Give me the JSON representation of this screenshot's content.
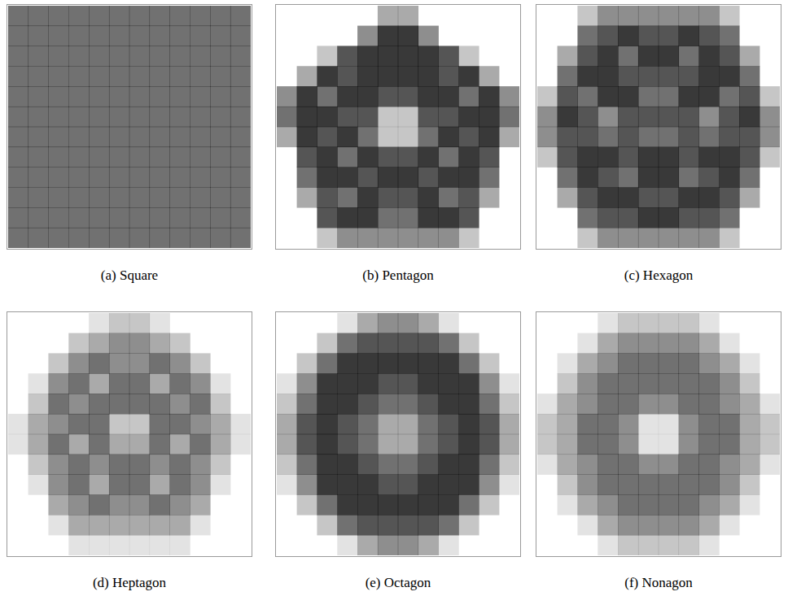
{
  "chart_data": [
    {
      "type": "heatmap",
      "title": "(a) Square",
      "tick_labels": false,
      "color": "#000000",
      "cells": [
        [
          5,
          5,
          5,
          5,
          5,
          5,
          5,
          5,
          5,
          5,
          5,
          5
        ],
        [
          5,
          5,
          5,
          5,
          5,
          5,
          5,
          5,
          5,
          5,
          5,
          5
        ],
        [
          5,
          5,
          5,
          5,
          5,
          5,
          5,
          5,
          5,
          5,
          5,
          5
        ],
        [
          5,
          5,
          5,
          5,
          5,
          5,
          5,
          5,
          5,
          5,
          5,
          5
        ],
        [
          5,
          5,
          5,
          5,
          5,
          5,
          5,
          5,
          5,
          5,
          5,
          5
        ],
        [
          5,
          5,
          5,
          5,
          5,
          5,
          5,
          5,
          5,
          5,
          5,
          5
        ],
        [
          5,
          5,
          5,
          5,
          5,
          5,
          5,
          5,
          5,
          5,
          5,
          5
        ],
        [
          5,
          5,
          5,
          5,
          5,
          5,
          5,
          5,
          5,
          5,
          5,
          5
        ],
        [
          5,
          5,
          5,
          5,
          5,
          5,
          5,
          5,
          5,
          5,
          5,
          5
        ],
        [
          5,
          5,
          5,
          5,
          5,
          5,
          5,
          5,
          5,
          5,
          5,
          5
        ],
        [
          5,
          5,
          5,
          5,
          5,
          5,
          5,
          5,
          5,
          5,
          5,
          5
        ],
        [
          5,
          5,
          5,
          5,
          5,
          5,
          5,
          5,
          5,
          5,
          5,
          5
        ]
      ]
    },
    {
      "type": "heatmap",
      "title": "(b) Pentagon",
      "tick_labels": false,
      "color": "#000000",
      "cells": [
        [
          0,
          0,
          0,
          0,
          0,
          3,
          3,
          0,
          0,
          0,
          0,
          0
        ],
        [
          0,
          0,
          0,
          0,
          4,
          7,
          7,
          4,
          0,
          0,
          0,
          0
        ],
        [
          0,
          0,
          2,
          6,
          7,
          7,
          7,
          7,
          6,
          2,
          0,
          0
        ],
        [
          0,
          3,
          7,
          6,
          7,
          7,
          7,
          7,
          6,
          7,
          3,
          0
        ],
        [
          4,
          7,
          5,
          7,
          7,
          6,
          6,
          7,
          7,
          5,
          7,
          4
        ],
        [
          5,
          7,
          7,
          6,
          6,
          2,
          2,
          6,
          6,
          7,
          7,
          5
        ],
        [
          3,
          7,
          6,
          7,
          5,
          2,
          2,
          5,
          7,
          6,
          7,
          3
        ],
        [
          0,
          6,
          7,
          5,
          7,
          6,
          6,
          7,
          5,
          7,
          6,
          0
        ],
        [
          0,
          5,
          7,
          7,
          6,
          7,
          7,
          6,
          7,
          7,
          5,
          0
        ],
        [
          0,
          3,
          6,
          5,
          7,
          6,
          6,
          7,
          5,
          6,
          3,
          0
        ],
        [
          0,
          0,
          6,
          7,
          7,
          5,
          5,
          7,
          7,
          6,
          0,
          0
        ],
        [
          0,
          0,
          2,
          4,
          4,
          4,
          4,
          4,
          4,
          2,
          0,
          0
        ]
      ]
    },
    {
      "type": "heatmap",
      "title": "(c) Hexagon",
      "tick_labels": false,
      "color": "#000000",
      "cells": [
        [
          0,
          0,
          2,
          4,
          4,
          4,
          4,
          4,
          4,
          2,
          0,
          0
        ],
        [
          0,
          0,
          5,
          6,
          7,
          6,
          6,
          7,
          6,
          5,
          0,
          0
        ],
        [
          0,
          3,
          6,
          7,
          5,
          7,
          7,
          5,
          7,
          6,
          3,
          0
        ],
        [
          0,
          5,
          7,
          7,
          6,
          6,
          6,
          6,
          7,
          7,
          5,
          0
        ],
        [
          2,
          6,
          5,
          7,
          7,
          5,
          5,
          7,
          7,
          5,
          6,
          2
        ],
        [
          4,
          7,
          6,
          4,
          6,
          6,
          6,
          6,
          4,
          6,
          7,
          4
        ],
        [
          4,
          6,
          6,
          5,
          6,
          5,
          5,
          6,
          5,
          6,
          6,
          4
        ],
        [
          2,
          6,
          7,
          7,
          6,
          7,
          7,
          6,
          7,
          7,
          6,
          2
        ],
        [
          0,
          5,
          7,
          6,
          5,
          7,
          7,
          5,
          6,
          7,
          5,
          0
        ],
        [
          0,
          3,
          6,
          7,
          7,
          6,
          6,
          7,
          7,
          6,
          3,
          0
        ],
        [
          0,
          0,
          5,
          6,
          6,
          7,
          7,
          6,
          6,
          5,
          0,
          0
        ],
        [
          0,
          0,
          2,
          4,
          4,
          4,
          4,
          4,
          4,
          2,
          0,
          0
        ]
      ]
    },
    {
      "type": "heatmap",
      "title": "(d) Heptagon",
      "tick_labels": false,
      "color": "#000000",
      "cells": [
        [
          0,
          0,
          0,
          0,
          1,
          2,
          2,
          1,
          0,
          0,
          0,
          0
        ],
        [
          0,
          0,
          0,
          2,
          3,
          4,
          4,
          3,
          2,
          0,
          0,
          0
        ],
        [
          0,
          0,
          2,
          4,
          5,
          4,
          4,
          5,
          4,
          2,
          0,
          0
        ],
        [
          0,
          1,
          4,
          5,
          3,
          5,
          5,
          3,
          5,
          4,
          1,
          0
        ],
        [
          0,
          2,
          5,
          4,
          5,
          5,
          5,
          5,
          4,
          5,
          2,
          0
        ],
        [
          1,
          3,
          4,
          5,
          5,
          2,
          2,
          5,
          5,
          4,
          3,
          1
        ],
        [
          1,
          3,
          5,
          3,
          5,
          3,
          3,
          5,
          3,
          5,
          3,
          1
        ],
        [
          0,
          2,
          4,
          5,
          4,
          5,
          5,
          4,
          5,
          4,
          2,
          0
        ],
        [
          0,
          1,
          4,
          5,
          3,
          5,
          5,
          3,
          5,
          4,
          1,
          0
        ],
        [
          0,
          0,
          3,
          4,
          5,
          4,
          4,
          5,
          4,
          3,
          0,
          0
        ],
        [
          0,
          0,
          1,
          3,
          3,
          3,
          3,
          3,
          3,
          1,
          0,
          0
        ],
        [
          0,
          0,
          0,
          1,
          1,
          1,
          1,
          1,
          1,
          0,
          0,
          0
        ]
      ]
    },
    {
      "type": "heatmap",
      "title": "(e) Octagon",
      "tick_labels": false,
      "color": "#000000",
      "cells": [
        [
          0,
          0,
          0,
          1,
          3,
          4,
          4,
          3,
          1,
          0,
          0,
          0
        ],
        [
          0,
          0,
          2,
          5,
          6,
          6,
          6,
          6,
          5,
          2,
          0,
          0
        ],
        [
          0,
          2,
          5,
          7,
          7,
          7,
          7,
          7,
          7,
          5,
          2,
          0
        ],
        [
          1,
          4,
          7,
          7,
          7,
          6,
          6,
          7,
          7,
          7,
          4,
          1
        ],
        [
          2,
          5,
          7,
          7,
          6,
          5,
          5,
          6,
          7,
          7,
          5,
          2
        ],
        [
          3,
          6,
          7,
          6,
          5,
          3,
          3,
          5,
          6,
          7,
          6,
          3
        ],
        [
          3,
          6,
          7,
          6,
          5,
          3,
          3,
          5,
          6,
          7,
          6,
          3
        ],
        [
          2,
          5,
          7,
          7,
          6,
          5,
          5,
          6,
          7,
          7,
          5,
          2
        ],
        [
          1,
          4,
          7,
          7,
          7,
          6,
          6,
          7,
          7,
          7,
          4,
          1
        ],
        [
          0,
          2,
          5,
          7,
          7,
          7,
          7,
          7,
          7,
          5,
          2,
          0
        ],
        [
          0,
          0,
          2,
          5,
          6,
          6,
          6,
          6,
          5,
          2,
          0,
          0
        ],
        [
          0,
          0,
          0,
          1,
          3,
          4,
          4,
          3,
          1,
          0,
          0,
          0
        ]
      ]
    },
    {
      "type": "heatmap",
      "title": "(f) Nonagon",
      "tick_labels": false,
      "color": "#000000",
      "cells": [
        [
          0,
          0,
          0,
          1,
          2,
          2,
          2,
          2,
          1,
          0,
          0,
          0
        ],
        [
          0,
          0,
          1,
          3,
          4,
          4,
          4,
          4,
          3,
          1,
          0,
          0
        ],
        [
          0,
          1,
          3,
          4,
          5,
          5,
          5,
          5,
          4,
          3,
          1,
          0
        ],
        [
          0,
          2,
          4,
          5,
          5,
          5,
          5,
          5,
          5,
          4,
          2,
          0
        ],
        [
          1,
          3,
          4,
          5,
          5,
          4,
          4,
          5,
          5,
          4,
          3,
          1
        ],
        [
          2,
          3,
          5,
          5,
          4,
          1,
          1,
          4,
          5,
          5,
          3,
          2
        ],
        [
          2,
          3,
          5,
          5,
          4,
          1,
          1,
          4,
          5,
          5,
          3,
          2
        ],
        [
          1,
          3,
          4,
          5,
          5,
          4,
          4,
          5,
          5,
          4,
          3,
          1
        ],
        [
          0,
          2,
          4,
          5,
          5,
          5,
          5,
          5,
          5,
          4,
          2,
          0
        ],
        [
          0,
          1,
          3,
          4,
          5,
          5,
          5,
          5,
          4,
          3,
          1,
          0
        ],
        [
          0,
          0,
          1,
          3,
          4,
          4,
          4,
          4,
          3,
          1,
          0,
          0
        ],
        [
          0,
          0,
          0,
          1,
          2,
          2,
          2,
          2,
          1,
          0,
          0,
          0
        ]
      ]
    }
  ]
}
